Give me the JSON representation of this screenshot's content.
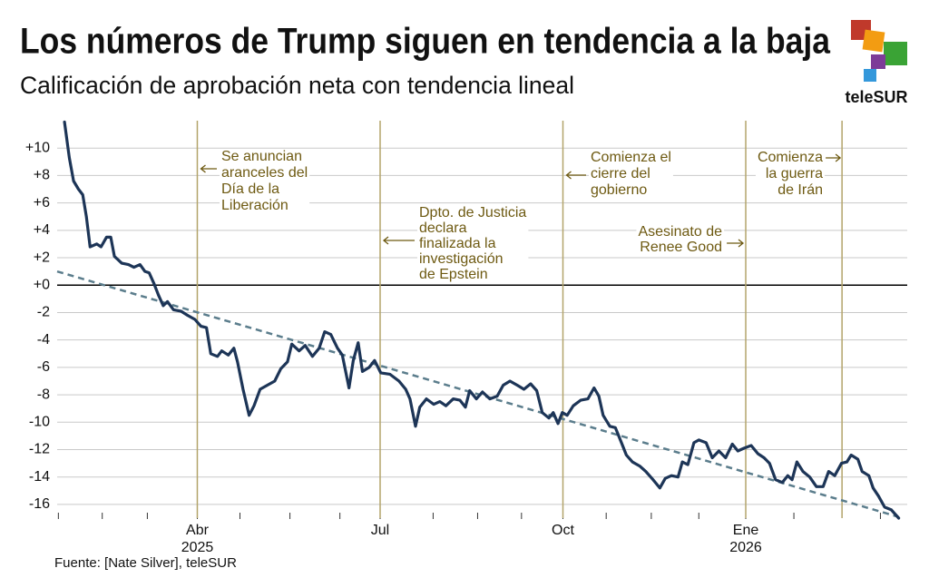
{
  "chart_data": {
    "type": "line",
    "title": "Los números de Trump siguen en tendencia a la baja",
    "subtitle": "Calificación de aprobación neta con tendencia lineal",
    "source": "Fuente: [Nate Silver], teleSUR",
    "logo": "teleSUR",
    "xlim": [
      0.7,
      14.65
    ],
    "ylim": [
      -17,
      12
    ],
    "xticks": [
      {
        "value": 3,
        "label": "Abr"
      },
      {
        "value": 6,
        "label": "Jul"
      },
      {
        "value": 9,
        "label": "Oct"
      },
      {
        "value": 12,
        "label": "Ene"
      }
    ],
    "x_minor_ticks": [
      0.72,
      1.44,
      2.18,
      3.7,
      4.52,
      5.34,
      6.87,
      7.6,
      8.32,
      9.71,
      10.45,
      11.23,
      12.79,
      14.21
    ],
    "year_labels": [
      {
        "value": 3,
        "label": "2025"
      },
      {
        "value": 12,
        "label": "2026"
      }
    ],
    "yticks": [
      {
        "value": 10,
        "label": "+10"
      },
      {
        "value": 8,
        "label": "+8"
      },
      {
        "value": 6,
        "label": "+6"
      },
      {
        "value": 4,
        "label": "+4"
      },
      {
        "value": 2,
        "label": "+2"
      },
      {
        "value": 0,
        "label": "+0"
      },
      -2,
      -4,
      -6,
      -8,
      -10,
      -12,
      -14,
      -16
    ],
    "grid": true,
    "series": [
      {
        "name": "Aprobación neta",
        "color": "#1d3557",
        "x": [
          0.82,
          0.9,
          0.97,
          1.05,
          1.12,
          1.18,
          1.24,
          1.35,
          1.42,
          1.51,
          1.58,
          1.64,
          1.76,
          1.87,
          1.96,
          2.06,
          2.14,
          2.21,
          2.29,
          2.36,
          2.44,
          2.51,
          2.61,
          2.73,
          2.84,
          2.96,
          3.06,
          3.15,
          3.22,
          3.33,
          3.4,
          3.51,
          3.6,
          3.66,
          3.75,
          3.85,
          3.93,
          4.03,
          4.15,
          4.27,
          4.37,
          4.48,
          4.55,
          4.67,
          4.77,
          4.89,
          5.0,
          5.09,
          5.19,
          5.3,
          5.38,
          5.49,
          5.56,
          5.64,
          5.71,
          5.82,
          5.91,
          6.01,
          6.16,
          6.31,
          6.42,
          6.49,
          6.58,
          6.65,
          6.76,
          6.88,
          6.98,
          7.08,
          7.2,
          7.31,
          7.4,
          7.47,
          7.58,
          7.68,
          7.8,
          7.92,
          8.02,
          8.13,
          8.25,
          8.36,
          8.47,
          8.57,
          8.66,
          8.77,
          8.84,
          8.92,
          8.99,
          9.07,
          9.17,
          9.29,
          9.41,
          9.51,
          9.59,
          9.66,
          9.77,
          9.86,
          9.96,
          10.04,
          10.14,
          10.26,
          10.36,
          10.48,
          10.59,
          10.68,
          10.78,
          10.89,
          10.96,
          11.05,
          11.15,
          11.23,
          11.35,
          11.45,
          11.56,
          11.67,
          11.78,
          11.87,
          11.97,
          12.09,
          12.2,
          12.3,
          12.39,
          12.49,
          12.6,
          12.69,
          12.76,
          12.84,
          12.94,
          13.05,
          13.16,
          13.27,
          13.36,
          13.46,
          13.57,
          13.66,
          13.73,
          13.84,
          13.91,
          14.02,
          14.09,
          14.18,
          14.28,
          14.39,
          14.51
        ],
        "values": [
          11.9,
          9.3,
          7.6,
          7.0,
          6.6,
          5.0,
          2.8,
          3.0,
          2.8,
          3.5,
          3.5,
          2.1,
          1.6,
          1.5,
          1.3,
          1.5,
          1.0,
          0.9,
          0.1,
          -0.7,
          -1.5,
          -1.2,
          -1.8,
          -1.9,
          -2.2,
          -2.5,
          -3.0,
          -3.1,
          -5.0,
          -5.2,
          -4.8,
          -5.1,
          -4.6,
          -5.6,
          -7.6,
          -9.5,
          -8.8,
          -7.6,
          -7.3,
          -7.0,
          -6.1,
          -5.6,
          -4.3,
          -4.8,
          -4.4,
          -5.2,
          -4.6,
          -3.4,
          -3.6,
          -4.6,
          -5.1,
          -7.5,
          -5.5,
          -4.2,
          -6.3,
          -6.0,
          -5.5,
          -6.4,
          -6.5,
          -7.0,
          -7.6,
          -8.3,
          -10.3,
          -8.9,
          -8.3,
          -8.7,
          -8.5,
          -8.8,
          -8.3,
          -8.4,
          -8.9,
          -7.7,
          -8.3,
          -7.8,
          -8.3,
          -8.1,
          -7.3,
          -7.0,
          -7.3,
          -7.6,
          -7.2,
          -7.7,
          -9.3,
          -9.7,
          -9.3,
          -10.1,
          -9.3,
          -9.5,
          -8.8,
          -8.4,
          -8.3,
          -7.5,
          -8.1,
          -9.5,
          -10.3,
          -10.4,
          -11.5,
          -12.4,
          -12.9,
          -13.2,
          -13.6,
          -14.2,
          -14.8,
          -14.1,
          -13.9,
          -14.0,
          -12.9,
          -13.1,
          -11.5,
          -11.3,
          -11.5,
          -12.6,
          -12.1,
          -12.6,
          -11.6,
          -12.1,
          -11.9,
          -11.7,
          -12.3,
          -12.6,
          -13.0,
          -14.2,
          -14.4,
          -13.9,
          -14.2,
          -12.9,
          -13.6,
          -14.0,
          -14.7,
          -14.7,
          -13.6,
          -13.9,
          -13.0,
          -12.9,
          -12.4,
          -12.7,
          -13.6,
          -13.9,
          -14.8,
          -15.4,
          -16.2,
          -16.4,
          -17.0
        ]
      }
    ],
    "trend": {
      "color": "#5b7d8c",
      "x": [
        0.7,
        14.5
      ],
      "values": [
        1.0,
        -16.9
      ]
    },
    "event_color": "#b3a46a",
    "annotations": [
      {
        "x": 3.0,
        "arrow": "left",
        "lines": [
          "Se anuncian",
          "aranceles del",
          "Día de la",
          "Liberación"
        ]
      },
      {
        "x": 6.0,
        "arrow": "left",
        "lines": [
          "Dpto. de Justicia",
          "declara",
          "finalizada la",
          "investigación",
          "de Epstein"
        ]
      },
      {
        "x": 9.0,
        "arrow": "left",
        "lines": [
          "Comienza el",
          "cierre del",
          "gobierno"
        ]
      },
      {
        "x": 12.0,
        "arrow": "right",
        "lines": [
          "Asesinato de",
          "Renee Good"
        ]
      },
      {
        "x": 13.58,
        "arrow": "right",
        "lines": [
          "Comienza",
          "la guerra",
          "de Irán"
        ]
      }
    ]
  }
}
